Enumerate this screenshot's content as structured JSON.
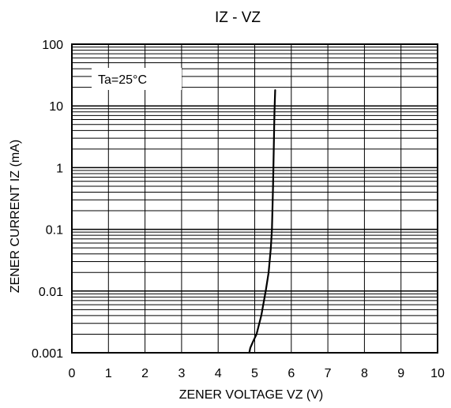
{
  "chart_data": {
    "type": "line",
    "title": "IZ - VZ",
    "xlabel": "ZENER VOLTAGE  VZ (V)",
    "ylabel": "ZENER CURRENT  IZ (mA)",
    "xlim": [
      0,
      10
    ],
    "ylim": [
      0.001,
      100
    ],
    "yscale": "log",
    "grid": true,
    "x_ticks": [
      0,
      1,
      2,
      3,
      4,
      5,
      6,
      7,
      8,
      9,
      10
    ],
    "x_tick_labels": [
      "0",
      "1",
      "2",
      "3",
      "4",
      "5",
      "6",
      "7",
      "8",
      "9",
      "10"
    ],
    "y_ticks": [
      0.001,
      0.01,
      0.1,
      1,
      10,
      100
    ],
    "y_tick_labels": [
      "0.001",
      "0.01",
      "0.1",
      "1",
      "10",
      "100"
    ],
    "annotation": "Ta=25°C",
    "series": [
      {
        "color": "#000000",
        "x": [
          4.85,
          4.88,
          4.95,
          5.05,
          5.18,
          5.3,
          5.38,
          5.44,
          5.47,
          5.5,
          5.52,
          5.54,
          5.56
        ],
        "y": [
          0.001,
          0.0012,
          0.0015,
          0.002,
          0.004,
          0.01,
          0.02,
          0.05,
          0.1,
          0.5,
          2,
          8,
          18
        ]
      }
    ]
  }
}
